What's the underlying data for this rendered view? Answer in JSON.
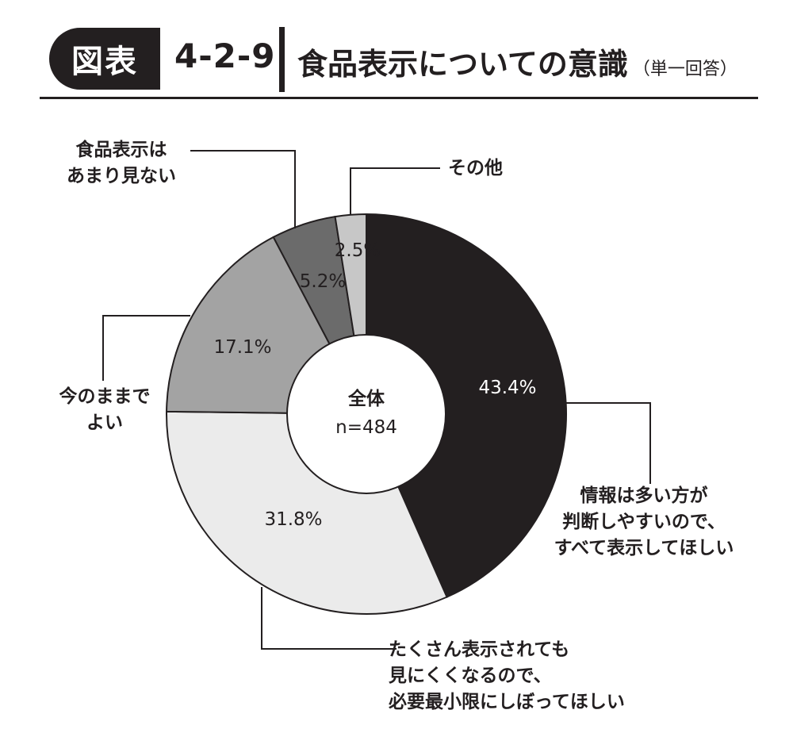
{
  "header": {
    "badge": "図表",
    "number": "4-2-9",
    "title": "食品表示についての意識",
    "subtitle": "（単一回答）"
  },
  "chart_data": {
    "type": "pie",
    "title": "食品表示についての意識",
    "center": {
      "label": "全体",
      "n": "n=484"
    },
    "slices": [
      {
        "name": "情報は多い方が判断しやすいので、すべて表示してほしい",
        "value": 43.4,
        "label": "43.4%",
        "color": "#231f20",
        "lines": [
          "情報は多い方が",
          "判断しやすいので、",
          "すべて表示してほしい"
        ]
      },
      {
        "name": "たくさん表示されても見にくくなるので、必要最小限にしぼってほしい",
        "value": 31.8,
        "label": "31.8%",
        "color": "#ebebeb",
        "lines": [
          "たくさん表示されても",
          "見にくくなるので、",
          "必要最小限にしぼってほしい"
        ]
      },
      {
        "name": "今のままでよい",
        "value": 17.1,
        "label": "17.1%",
        "color": "#a3a3a3",
        "lines": [
          "今のままで",
          "よい"
        ]
      },
      {
        "name": "食品表示はあまり見ない",
        "value": 5.2,
        "label": "5.2%",
        "color": "#6b6b6b",
        "lines": [
          "食品表示は",
          "あまり見ない"
        ]
      },
      {
        "name": "その他",
        "value": 2.5,
        "label": "2.5%",
        "color": "#c7c7c7",
        "lines": [
          "その他"
        ]
      }
    ]
  }
}
